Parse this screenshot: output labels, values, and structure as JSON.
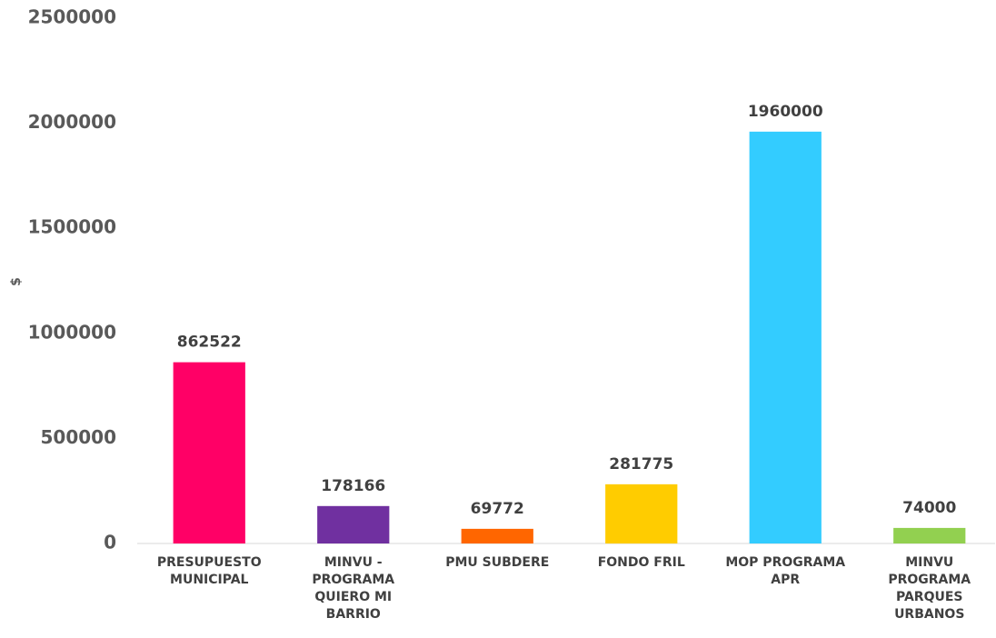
{
  "chart_data": {
    "type": "bar",
    "y_label": "$",
    "categories": [
      "PRESUPUESTO MUNICIPAL",
      "MINVU - PROGRAMA QUIERO MI BARRIO",
      "PMU SUBDERE",
      "FONDO FRIL",
      "MOP PROGRAMA APR",
      "MINVU PROGRAMA PARQUES URBANOS"
    ],
    "values": [
      862522,
      178166,
      69772,
      281775,
      1960000,
      74000
    ],
    "colors": [
      "#ff0066",
      "#7030a0",
      "#ff6600",
      "#ffcc00",
      "#33ccff",
      "#92d050"
    ],
    "ylim": [
      0,
      2500000
    ],
    "yticks": [
      0,
      500000,
      1000000,
      1500000,
      2000000,
      2500000
    ],
    "grid": false
  }
}
